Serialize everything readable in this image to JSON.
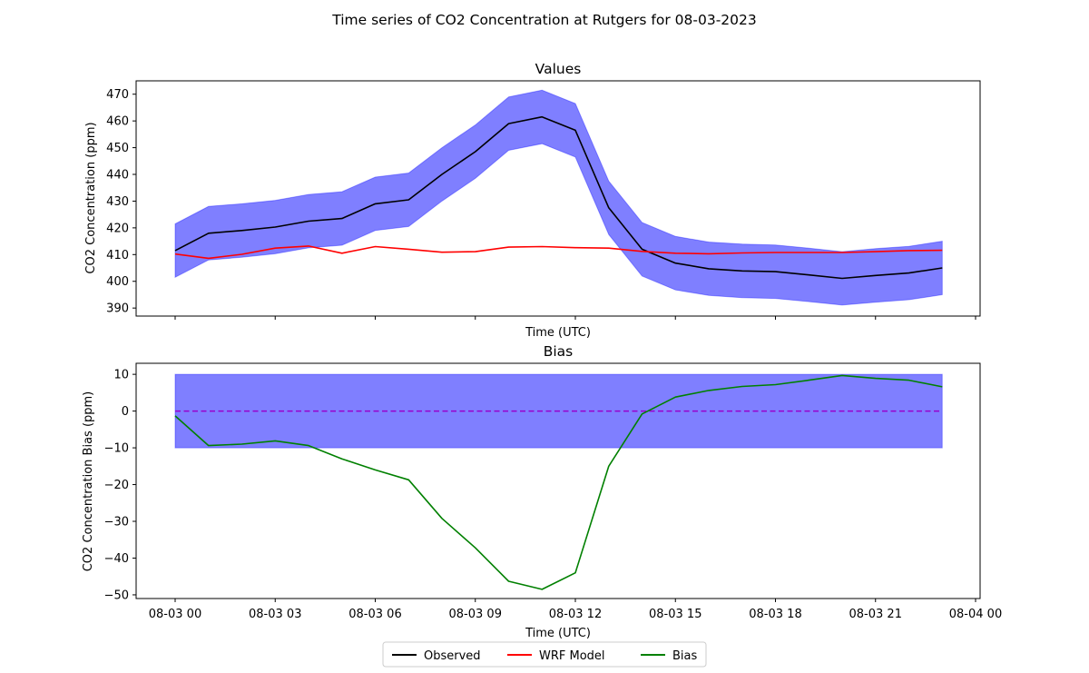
{
  "suptitle": "Time series of CO2 Concentration at Rutgers for 08-03-2023",
  "legend": [
    {
      "label": "Observed",
      "color": "#000000"
    },
    {
      "label": "WRF Model",
      "color": "#ff0000"
    },
    {
      "label": "Bias",
      "color": "#008000"
    }
  ],
  "chart_data": [
    {
      "type": "line",
      "title": "Values",
      "xlabel": "Time (UTC)",
      "ylabel": "CO2 Concentration (ppm)",
      "ylim": [
        387,
        475
      ],
      "yticks": [
        390,
        400,
        410,
        420,
        430,
        440,
        450,
        460,
        470
      ],
      "xticks": [
        "08-03 00",
        "08-03 03",
        "08-03 06",
        "08-03 09",
        "08-03 12",
        "08-03 15",
        "08-03 18",
        "08-03 21",
        "08-04 00"
      ],
      "xticklabels_visible": false,
      "x_hours": [
        0,
        1,
        2,
        3,
        4,
        5,
        6,
        7,
        8,
        9,
        10,
        11,
        12,
        13,
        14,
        15,
        16,
        17,
        18,
        19,
        20,
        21,
        22,
        23
      ],
      "band": {
        "color": "#0000ff",
        "alpha": 0.5,
        "half_width": 10
      },
      "series": [
        {
          "name": "Observed",
          "color": "#000000",
          "values": [
            411.5,
            418,
            419,
            420.3,
            422.5,
            423.5,
            429,
            430.5,
            440,
            448.5,
            459,
            461.5,
            456.5,
            427.5,
            412,
            406.8,
            404.7,
            403.9,
            403.6,
            402.4,
            401.1,
            402.2,
            403.1,
            405
          ]
        },
        {
          "name": "WRF Model",
          "color": "#ff0000",
          "values": [
            410.2,
            408.6,
            410.1,
            412.4,
            413.2,
            410.5,
            413,
            412,
            410.9,
            411.1,
            412.8,
            413,
            412.6,
            412.4,
            411.2,
            410.5,
            410.3,
            410.6,
            410.8,
            410.8,
            410.8,
            411.1,
            411.5,
            411.6
          ]
        }
      ]
    },
    {
      "type": "line",
      "title": "Bias",
      "xlabel": "Time (UTC)",
      "ylabel": "CO2 Concentration Bias (ppm)",
      "ylim": [
        -51,
        13
      ],
      "yticks": [
        10,
        0,
        -10,
        -20,
        -30,
        -40,
        -50
      ],
      "yticklabels": [
        "10",
        "0",
        "−10",
        "−20",
        "−30",
        "−40",
        "−50"
      ],
      "xticks": [
        "08-03 00",
        "08-03 03",
        "08-03 06",
        "08-03 09",
        "08-03 12",
        "08-03 15",
        "08-03 18",
        "08-03 21",
        "08-04 00"
      ],
      "x_hours": [
        0,
        1,
        2,
        3,
        4,
        5,
        6,
        7,
        8,
        9,
        10,
        11,
        12,
        13,
        14,
        15,
        16,
        17,
        18,
        19,
        20,
        21,
        22,
        23
      ],
      "band": {
        "color": "#0000ff",
        "alpha": 0.5,
        "from": -10,
        "to": 10
      },
      "zero_line": {
        "value": 0,
        "color": "#9900cc",
        "style": "dashed"
      },
      "series": [
        {
          "name": "Bias",
          "color": "#008000",
          "values": [
            -1.3,
            -9.4,
            -9,
            -8.1,
            -9.4,
            -13,
            -16,
            -18.7,
            -29.2,
            -37.2,
            -46.3,
            -48.5,
            -44,
            -15,
            -0.8,
            3.8,
            5.6,
            6.7,
            7.2,
            8.4,
            9.7,
            8.9,
            8.4,
            6.6
          ]
        }
      ]
    }
  ]
}
